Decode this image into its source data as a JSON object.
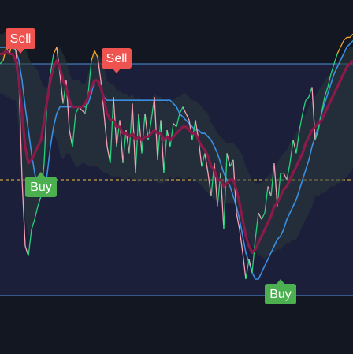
{
  "chart_data": {
    "type": "line",
    "x": [
      0,
      1,
      2,
      3,
      4,
      5,
      6,
      7,
      8,
      9,
      10,
      11,
      12,
      13,
      14,
      15,
      16,
      17,
      18,
      19,
      20,
      21,
      22,
      23,
      24,
      25,
      26,
      27,
      28,
      29,
      30,
      31,
      32,
      33,
      34,
      35,
      36,
      37,
      38,
      39,
      40,
      41,
      42,
      43,
      44,
      45,
      46,
      47,
      48,
      49,
      50,
      51,
      52,
      53,
      54,
      55,
      56,
      57,
      58,
      59,
      60,
      61,
      62,
      63,
      64,
      65,
      66,
      67,
      68,
      69,
      70,
      71,
      72,
      73,
      74,
      75,
      76,
      77,
      78,
      79,
      80,
      81,
      82,
      83,
      84,
      85,
      86,
      87,
      88,
      89,
      90,
      91,
      92,
      93,
      94,
      95,
      96,
      97,
      98,
      99,
      100,
      101,
      102,
      103,
      104,
      105,
      106,
      107,
      108,
      109,
      110,
      111,
      112
    ],
    "ylim": [
      0,
      100
    ],
    "xlim": [
      0,
      112
    ],
    "upper_band": 85,
    "lower_band": 15,
    "midline": 50,
    "series": [
      {
        "role": "rsi",
        "values": [
          85,
          86,
          90,
          88,
          92,
          89,
          80,
          50,
          30,
          27,
          35,
          38,
          42,
          45,
          55,
          75,
          82,
          88,
          90,
          82,
          73,
          80,
          65,
          60,
          70,
          72,
          71,
          70,
          76,
          86,
          89,
          87,
          80,
          70,
          60,
          55,
          75,
          60,
          68,
          55,
          65,
          58,
          73,
          52,
          70,
          58,
          70,
          62,
          68,
          75,
          56,
          68,
          52,
          65,
          60,
          67,
          66,
          70,
          72,
          70,
          68,
          62,
          68,
          62,
          54,
          58,
          52,
          45,
          55,
          42,
          52,
          35,
          58,
          54,
          56,
          40,
          35,
          28,
          20,
          26,
          22,
          32,
          40,
          38,
          40,
          48,
          45,
          55,
          42,
          52,
          52,
          50,
          55,
          62,
          58,
          65,
          70,
          74,
          75,
          78,
          62,
          65,
          70,
          75,
          78,
          82,
          85,
          88,
          90,
          92,
          93,
          93,
          94
        ]
      },
      {
        "role": "rsi-ma",
        "values": [
          88,
          88,
          89,
          88,
          88,
          86,
          80,
          70,
          60,
          55,
          56,
          58,
          60,
          62,
          68,
          74,
          80,
          84,
          86,
          84,
          80,
          78,
          74,
          72,
          72,
          72,
          72,
          73,
          75,
          78,
          80,
          80,
          78,
          74,
          70,
          68,
          68,
          66,
          66,
          64,
          64,
          63,
          64,
          62,
          63,
          62,
          63,
          63,
          64,
          65,
          64,
          64,
          62,
          63,
          62,
          63,
          64,
          65,
          66,
          66,
          65,
          64,
          64,
          62,
          60,
          59,
          57,
          54,
          53,
          50,
          50,
          48,
          49,
          50,
          50,
          47,
          43,
          38,
          33,
          30,
          28,
          29,
          31,
          33,
          35,
          37,
          39,
          42,
          43,
          45,
          47,
          48,
          50,
          52,
          54,
          56,
          58,
          61,
          63,
          65,
          66,
          67,
          68,
          70,
          72,
          74,
          76,
          78,
          80,
          82,
          84,
          85,
          86
        ]
      },
      {
        "role": "bb-basis",
        "values": [
          85,
          85,
          85,
          85,
          85,
          85,
          80,
          72,
          64,
          60,
          60,
          61,
          62,
          62,
          65,
          68,
          71,
          74,
          75,
          74,
          72,
          72,
          70,
          68,
          67,
          67,
          67,
          67,
          68,
          70,
          71,
          71,
          70,
          68,
          66,
          65,
          65,
          64,
          64,
          63,
          63,
          63,
          63,
          62,
          62,
          62,
          62,
          62,
          62,
          63,
          62,
          62,
          61,
          62,
          62,
          62,
          63,
          63,
          63,
          63,
          63,
          62,
          62,
          61,
          60,
          59,
          58,
          56,
          55,
          54,
          53,
          52,
          52,
          52,
          52,
          51,
          49,
          46,
          44,
          42,
          40,
          39,
          38,
          38,
          38,
          39,
          40,
          41,
          42,
          43,
          44,
          45,
          46,
          47,
          48,
          50,
          52,
          54,
          56,
          58,
          60,
          61,
          62,
          63,
          64,
          65,
          66,
          67,
          68,
          69,
          70,
          71,
          72
        ]
      },
      {
        "role": "bb-upper",
        "values": [
          94,
          94,
          95,
          95,
          96,
          96,
          95,
          93,
          90,
          87,
          85,
          84,
          83,
          80,
          78,
          78,
          80,
          84,
          88,
          90,
          88,
          86,
          82,
          80,
          80,
          80,
          79,
          79,
          82,
          86,
          88,
          88,
          87,
          84,
          80,
          79,
          79,
          77,
          77,
          76,
          76,
          75,
          76,
          74,
          75,
          74,
          74,
          74,
          74,
          76,
          75,
          75,
          73,
          74,
          73,
          74,
          75,
          75,
          76,
          76,
          75,
          74,
          74,
          73,
          72,
          71,
          70,
          67,
          66,
          64,
          63,
          62,
          61,
          61,
          61,
          60,
          59,
          57,
          54,
          52,
          50,
          49,
          49,
          49,
          50,
          51,
          52,
          54,
          55,
          57,
          58,
          59,
          61,
          62,
          64,
          66,
          68,
          70,
          72,
          74,
          75,
          77,
          78,
          80,
          81,
          82,
          84,
          85,
          87,
          88,
          89,
          90,
          90
        ]
      },
      {
        "role": "bb-lower",
        "values": [
          76,
          76,
          75,
          75,
          74,
          74,
          65,
          51,
          38,
          33,
          35,
          38,
          41,
          44,
          52,
          58,
          62,
          64,
          62,
          58,
          56,
          58,
          58,
          56,
          54,
          54,
          55,
          55,
          54,
          54,
          54,
          54,
          53,
          52,
          52,
          51,
          51,
          51,
          51,
          50,
          50,
          51,
          50,
          50,
          49,
          50,
          50,
          50,
          50,
          50,
          49,
          49,
          49,
          50,
          51,
          50,
          51,
          51,
          50,
          50,
          51,
          50,
          50,
          49,
          48,
          47,
          46,
          45,
          44,
          44,
          43,
          42,
          43,
          43,
          43,
          42,
          39,
          35,
          34,
          32,
          30,
          29,
          27,
          27,
          26,
          27,
          28,
          28,
          29,
          29,
          30,
          31,
          31,
          32,
          32,
          34,
          36,
          38,
          40,
          42,
          45,
          45,
          46,
          46,
          47,
          48,
          48,
          49,
          49,
          50,
          51,
          52,
          54
        ]
      },
      {
        "role": "slow-band",
        "values": [
          90,
          90,
          90,
          90,
          90,
          89,
          86,
          80,
          72,
          65,
          58,
          52,
          48,
          45,
          46,
          52,
          60,
          66,
          70,
          72,
          72,
          72,
          72,
          72,
          72,
          72,
          72,
          72,
          73,
          76,
          80,
          80,
          78,
          75,
          74,
          74,
          74,
          74,
          74,
          74,
          74,
          74,
          74,
          74,
          74,
          74,
          74,
          74,
          74,
          74,
          74,
          74,
          74,
          74,
          74,
          73,
          72,
          70,
          69,
          68,
          67,
          66,
          65,
          65,
          64,
          64,
          63,
          62,
          60,
          58,
          55,
          52,
          50,
          48,
          45,
          42,
          38,
          33,
          28,
          25,
          22,
          20,
          20,
          22,
          24,
          26,
          28,
          30,
          32,
          33,
          35,
          38,
          40,
          42,
          44,
          47,
          50,
          53,
          56,
          60,
          63,
          66,
          70,
          73,
          76,
          79,
          82,
          84,
          86,
          88,
          90,
          91,
          92
        ]
      }
    ],
    "signals": [
      {
        "type": "sell",
        "label": "Sell",
        "x": 2
      },
      {
        "type": "sell",
        "label": "Sell",
        "x": 37
      },
      {
        "type": "buy",
        "label": "Buy",
        "x": 13
      },
      {
        "type": "buy",
        "label": "Buy",
        "x": 89
      }
    ],
    "colors": {
      "background": "#131722",
      "band_fill": "#1c1f3a",
      "band_line": "#4a90d9",
      "midline": "#f5c542",
      "rsi_up": "#26d07c",
      "rsi_down": "#f7a1b7",
      "rsi_overbought": "#f5a623",
      "rsi_ma": "#8b1a4a",
      "slow_band": "#3b8fe0",
      "bb_fill": "#2c3a3a",
      "sell_label": "#ef5350",
      "buy_label": "#4caf50"
    }
  }
}
